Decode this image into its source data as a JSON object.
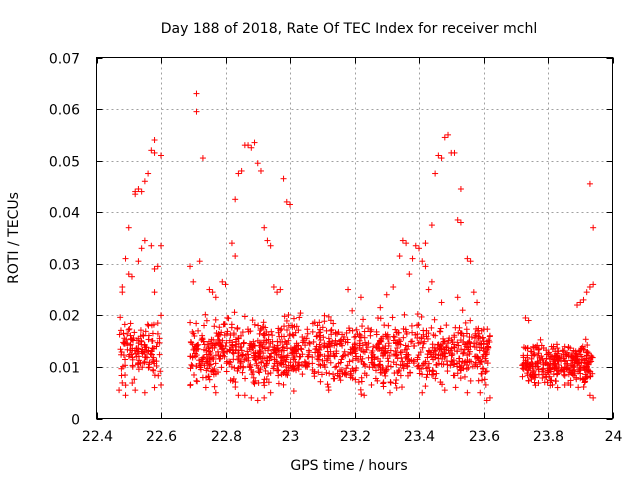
{
  "chart_data": {
    "type": "scatter",
    "title": "Day 188 of 2018, Rate Of TEC Index for receiver mchl",
    "xlabel": "GPS time / hours",
    "ylabel": "ROTI / TECUs",
    "xlim": [
      22.4,
      24.0
    ],
    "ylim": [
      0,
      0.07
    ],
    "xticks": [
      "22.4",
      "22.6",
      "22.8",
      "23",
      "23.2",
      "23.4",
      "23.6",
      "23.8",
      "24"
    ],
    "yticks": [
      "0",
      "0.01",
      "0.02",
      "0.03",
      "0.04",
      "0.05",
      "0.06",
      "0.07"
    ],
    "grid": true,
    "marker": "+",
    "color": "#ff0000",
    "series": [
      {
        "name": "ROTI",
        "points": [
          [
            22.48,
            0.0255
          ],
          [
            22.48,
            0.0245
          ],
          [
            22.49,
            0.031
          ],
          [
            22.5,
            0.037
          ],
          [
            22.5,
            0.028
          ],
          [
            22.51,
            0.0275
          ],
          [
            22.52,
            0.044
          ],
          [
            22.52,
            0.0435
          ],
          [
            22.53,
            0.0445
          ],
          [
            22.53,
            0.0305
          ],
          [
            22.54,
            0.033
          ],
          [
            22.54,
            0.044
          ],
          [
            22.55,
            0.046
          ],
          [
            22.55,
            0.0345
          ],
          [
            22.56,
            0.0475
          ],
          [
            22.57,
            0.0335
          ],
          [
            22.57,
            0.052
          ],
          [
            22.58,
            0.054
          ],
          [
            22.58,
            0.0515
          ],
          [
            22.58,
            0.029
          ],
          [
            22.59,
            0.0295
          ],
          [
            22.6,
            0.051
          ],
          [
            22.6,
            0.0335
          ],
          [
            22.58,
            0.0245
          ],
          [
            22.59,
            0.0185
          ],
          [
            22.6,
            0.02
          ],
          [
            22.69,
            0.0295
          ],
          [
            22.7,
            0.0265
          ],
          [
            22.71,
            0.063
          ],
          [
            22.71,
            0.0595
          ],
          [
            22.72,
            0.0305
          ],
          [
            22.73,
            0.0505
          ],
          [
            22.75,
            0.025
          ],
          [
            22.76,
            0.0245
          ],
          [
            22.77,
            0.0235
          ],
          [
            22.79,
            0.0265
          ],
          [
            22.8,
            0.026
          ],
          [
            22.82,
            0.034
          ],
          [
            22.83,
            0.0315
          ],
          [
            22.83,
            0.0425
          ],
          [
            22.84,
            0.0475
          ],
          [
            22.85,
            0.048
          ],
          [
            22.86,
            0.053
          ],
          [
            22.87,
            0.053
          ],
          [
            22.88,
            0.0525
          ],
          [
            22.89,
            0.0535
          ],
          [
            22.9,
            0.0495
          ],
          [
            22.91,
            0.048
          ],
          [
            22.92,
            0.037
          ],
          [
            22.93,
            0.0345
          ],
          [
            22.94,
            0.0335
          ],
          [
            22.95,
            0.0255
          ],
          [
            22.97,
            0.025
          ],
          [
            22.98,
            0.0465
          ],
          [
            22.99,
            0.042
          ],
          [
            23.0,
            0.0415
          ],
          [
            22.96,
            0.0245
          ],
          [
            23.18,
            0.025
          ],
          [
            23.22,
            0.0235
          ],
          [
            23.28,
            0.0215
          ],
          [
            23.3,
            0.024
          ],
          [
            23.32,
            0.0255
          ],
          [
            23.34,
            0.0315
          ],
          [
            23.35,
            0.0345
          ],
          [
            23.36,
            0.034
          ],
          [
            23.37,
            0.028
          ],
          [
            23.38,
            0.031
          ],
          [
            23.39,
            0.0335
          ],
          [
            23.4,
            0.033
          ],
          [
            23.41,
            0.0305
          ],
          [
            23.42,
            0.0295
          ],
          [
            23.42,
            0.034
          ],
          [
            23.43,
            0.025
          ],
          [
            23.44,
            0.0375
          ],
          [
            23.45,
            0.0475
          ],
          [
            23.46,
            0.051
          ],
          [
            23.47,
            0.0505
          ],
          [
            23.48,
            0.0545
          ],
          [
            23.49,
            0.055
          ],
          [
            23.5,
            0.0515
          ],
          [
            23.51,
            0.0515
          ],
          [
            23.52,
            0.0385
          ],
          [
            23.53,
            0.0445
          ],
          [
            23.53,
            0.038
          ],
          [
            23.55,
            0.031
          ],
          [
            23.56,
            0.0305
          ],
          [
            23.57,
            0.0245
          ],
          [
            23.44,
            0.0265
          ],
          [
            23.47,
            0.0225
          ],
          [
            23.52,
            0.0235
          ],
          [
            23.58,
            0.0225
          ],
          [
            23.93,
            0.0455
          ],
          [
            23.94,
            0.037
          ],
          [
            23.94,
            0.026
          ],
          [
            23.93,
            0.0255
          ],
          [
            23.92,
            0.0245
          ],
          [
            23.9,
            0.0225
          ],
          [
            23.91,
            0.023
          ],
          [
            23.89,
            0.022
          ],
          [
            23.93,
            0.0045
          ],
          [
            23.94,
            0.004
          ],
          [
            22.47,
            0.0055
          ],
          [
            22.49,
            0.0045
          ],
          [
            22.52,
            0.0055
          ],
          [
            22.55,
            0.005
          ],
          [
            22.58,
            0.006
          ],
          [
            22.6,
            0.0065
          ],
          [
            22.77,
            0.005
          ],
          [
            22.84,
            0.0045
          ],
          [
            22.86,
            0.0045
          ],
          [
            22.88,
            0.004
          ],
          [
            22.9,
            0.0035
          ],
          [
            22.92,
            0.004
          ],
          [
            22.94,
            0.005
          ],
          [
            23.12,
            0.0055
          ],
          [
            23.23,
            0.0045
          ],
          [
            23.31,
            0.005
          ],
          [
            23.41,
            0.005
          ],
          [
            23.48,
            0.0055
          ],
          [
            23.55,
            0.005
          ],
          [
            23.59,
            0.005
          ],
          [
            23.61,
            0.0035
          ],
          [
            23.62,
            0.004
          ],
          [
            23.73,
            0.0195
          ],
          [
            23.74,
            0.019
          ],
          [
            23.79,
            0.007
          ],
          [
            23.83,
            0.006
          ],
          [
            23.87,
            0.0065
          ]
        ]
      }
    ],
    "dense_clusters": [
      {
        "x0": 22.47,
        "x1": 22.6,
        "y0": 0.005,
        "y1": 0.02,
        "count": 130
      },
      {
        "x0": 22.69,
        "x1": 23.0,
        "y0": 0.004,
        "y1": 0.021,
        "count": 420
      },
      {
        "x0": 23.0,
        "x1": 23.62,
        "y0": 0.004,
        "y1": 0.021,
        "count": 720
      },
      {
        "x0": 23.72,
        "x1": 23.94,
        "y0": 0.005,
        "y1": 0.016,
        "count": 320
      }
    ]
  }
}
